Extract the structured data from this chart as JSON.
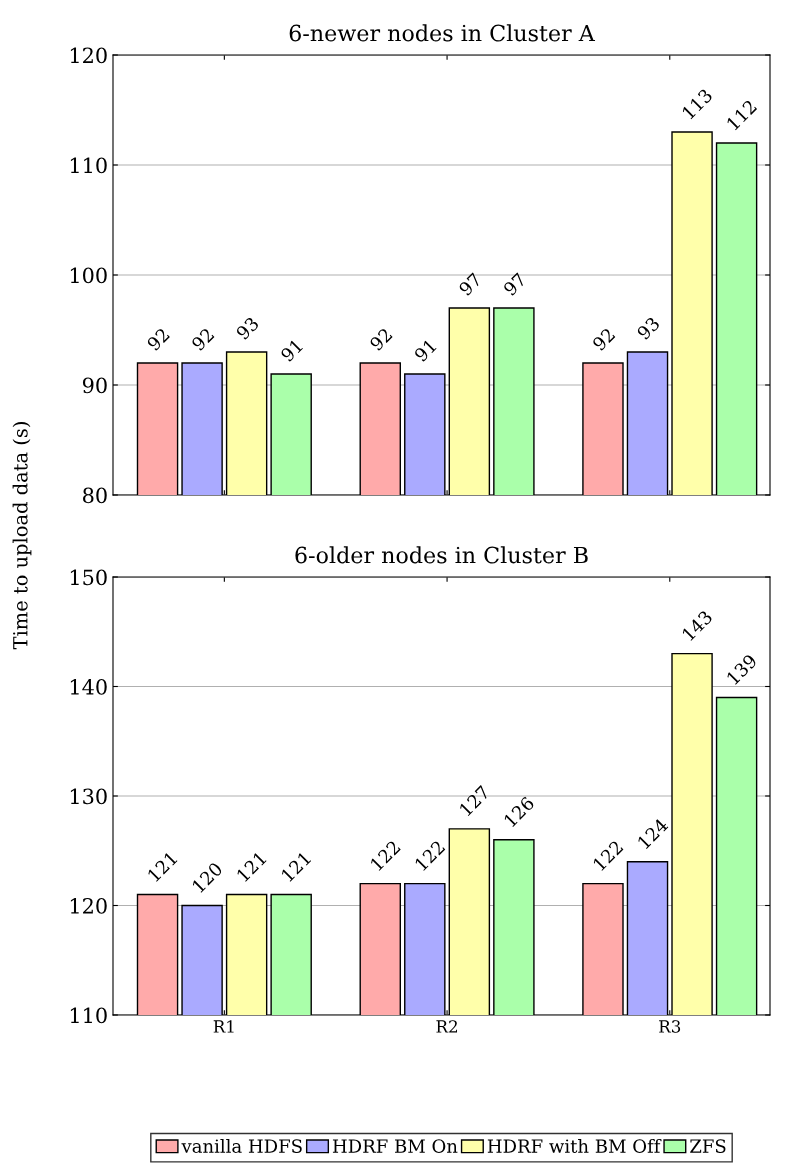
{
  "chart_data": [
    {
      "type": "bar",
      "title": "6-newer nodes in Cluster A",
      "ylabel": "Time to upload data (s)",
      "categories": [
        null,
        null,
        null
      ],
      "ylim": [
        80,
        120
      ],
      "yticks": [
        80,
        90,
        100,
        110,
        120
      ],
      "grid": "y",
      "data_labels": true,
      "tick_labels": "y",
      "series": [
        {
          "color": "#ffaaaa",
          "values": [
            92,
            92,
            92
          ]
        },
        {
          "color": "#aaaaff",
          "values": [
            92,
            91,
            93
          ]
        },
        {
          "color": "#ffffaa",
          "values": [
            93,
            97,
            113
          ]
        },
        {
          "color": "#aaffaa",
          "values": [
            91,
            97,
            112
          ]
        }
      ]
    },
    {
      "type": "bar",
      "title": "6-older nodes in Cluster B",
      "categories": [
        "R1",
        "R2",
        "R3"
      ],
      "ylim": [
        110,
        150
      ],
      "yticks": [
        110,
        120,
        130,
        140,
        150
      ],
      "grid": "y",
      "data_labels": true,
      "legend": "bottom",
      "series": [
        {
          "name": "vanilla HDFS",
          "color": "#ffaaaa",
          "values": [
            121,
            122,
            122
          ]
        },
        {
          "name": "HDRF BM On",
          "color": "#aaaaff",
          "values": [
            120,
            122,
            124
          ]
        },
        {
          "name": "HDRF with BM Off",
          "color": "#ffffaa",
          "values": [
            121,
            127,
            143
          ]
        },
        {
          "name": "ZFS",
          "color": "#aaffaa",
          "values": [
            121,
            126,
            139
          ]
        }
      ]
    }
  ]
}
